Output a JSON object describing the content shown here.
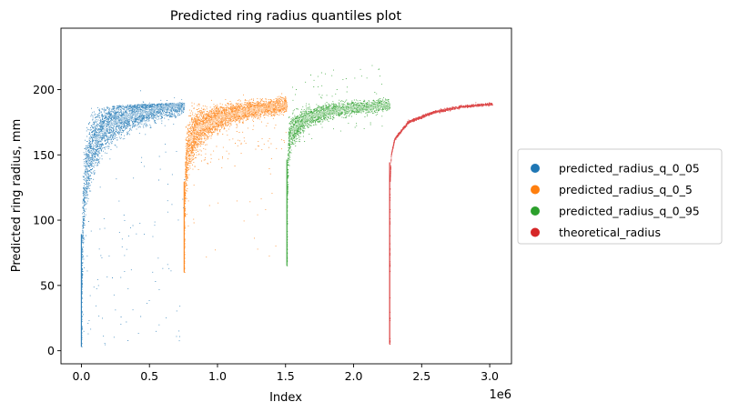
{
  "chart_data": {
    "type": "scatter",
    "title": "Predicted ring radius quantiles plot",
    "xlabel": "Index",
    "ylabel": "Predicted ring radius, mm",
    "x_offset_label": "1e6",
    "xlim": [
      -0.15,
      3.16
    ],
    "ylim": [
      -10,
      247
    ],
    "x_ticks": [
      0.0,
      0.5,
      1.0,
      1.5,
      2.0,
      2.5,
      3.0
    ],
    "x_tick_labels": [
      "0.0",
      "0.5",
      "1.0",
      "1.5",
      "2.0",
      "2.5",
      "3.0"
    ],
    "y_ticks": [
      0,
      50,
      100,
      150,
      200
    ],
    "y_tick_labels": [
      "0",
      "50",
      "100",
      "150",
      "200"
    ],
    "grid": false,
    "legend_position": "right-outside",
    "series": [
      {
        "name": "predicted_radius_q_0_05",
        "color": "#1f77b4",
        "x_range": [
          0.0,
          0.755
        ],
        "center_curve": [
          [
            0.0,
            5
          ],
          [
            0.003,
            60
          ],
          [
            0.01,
            105
          ],
          [
            0.03,
            135
          ],
          [
            0.08,
            157
          ],
          [
            0.15,
            168
          ],
          [
            0.3,
            178
          ],
          [
            0.5,
            184
          ],
          [
            0.755,
            189
          ]
        ],
        "upper_edge": [
          [
            0.0,
            185
          ],
          [
            0.3,
            188
          ],
          [
            0.755,
            190
          ]
        ],
        "outlier_max": 203,
        "outlier_min": 3
      },
      {
        "name": "predicted_radius_q_0_5",
        "color": "#ff7f0e",
        "x_range": [
          0.755,
          1.51
        ],
        "center_curve": [
          [
            0.755,
            60
          ],
          [
            0.758,
            110
          ],
          [
            0.765,
            140
          ],
          [
            0.79,
            160
          ],
          [
            0.85,
            170
          ],
          [
            1.0,
            178
          ],
          [
            1.2,
            184
          ],
          [
            1.51,
            188
          ]
        ],
        "upper_edge": [
          [
            0.755,
            190
          ],
          [
            1.0,
            195
          ],
          [
            1.51,
            197
          ]
        ],
        "outlier_max": 208,
        "outlier_min": 60
      },
      {
        "name": "predicted_radius_q_0_95",
        "color": "#2ca02c",
        "x_range": [
          1.51,
          2.265
        ],
        "center_curve": [
          [
            1.51,
            65
          ],
          [
            1.512,
            120
          ],
          [
            1.52,
            158
          ],
          [
            1.55,
            170
          ],
          [
            1.65,
            178
          ],
          [
            1.8,
            183
          ],
          [
            2.0,
            186
          ],
          [
            2.265,
            188
          ]
        ],
        "upper_edge": [
          [
            1.51,
            215
          ],
          [
            1.6,
            205
          ],
          [
            2.265,
            200
          ]
        ],
        "outlier_max": 237,
        "outlier_min": 65
      },
      {
        "name": "theoretical_radius",
        "color": "#d62728",
        "x_range": [
          2.265,
          3.02
        ],
        "center_curve": [
          [
            2.265,
            5
          ],
          [
            2.2652,
            60
          ],
          [
            2.2665,
            130
          ],
          [
            2.275,
            150
          ],
          [
            2.3,
            162
          ],
          [
            2.4,
            175
          ],
          [
            2.6,
            183
          ],
          [
            2.8,
            187
          ],
          [
            3.02,
            189
          ]
        ],
        "outlier_max": 190,
        "outlier_min": 5
      }
    ]
  }
}
